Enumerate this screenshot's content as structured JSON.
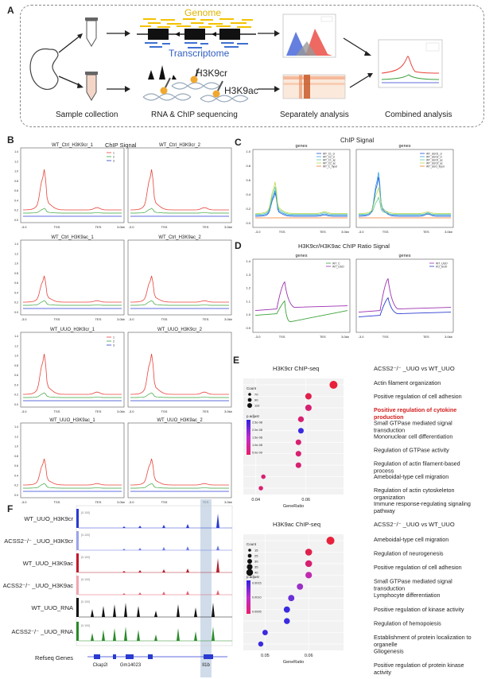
{
  "panels": {
    "A": "A",
    "B": "B",
    "C": "C",
    "D": "D",
    "E": "E",
    "F": "F"
  },
  "panelA": {
    "genome": "Genome",
    "transcriptome": "Transcriptome",
    "h3k9cr": "H3K9cr",
    "h3k9ac": "H3K9ac",
    "steps": [
      "Sample collection",
      "RNA  & ChIP sequencing",
      "Separately analysis",
      "Combined analysis"
    ]
  },
  "panelB": {
    "heading": "ChIP Signal",
    "plots": [
      {
        "title": "WT_Ctrl_H3K9cr_1"
      },
      {
        "title": "WT_Ctrl_H3K9cr_2"
      },
      {
        "title": "WT_Ctrl_H3K9ac_1"
      },
      {
        "title": "WT_Ctrl_H3K9ac_2"
      },
      {
        "title": "WT_UUO_H3K9cr_1"
      },
      {
        "title": "WT_UUO_H3K9cr_2"
      },
      {
        "title": "WT_UUO_H3K9ac_1"
      },
      {
        "title": "WT_UUO_H3K9ac_2"
      }
    ],
    "xticks": [
      "-3.0",
      "TSS",
      "TES",
      "3.0kb"
    ],
    "legend": [
      "1",
      "2",
      "3"
    ]
  },
  "panelC": {
    "heading": "ChIP Signal",
    "subtitle": "genes",
    "left_legend": [
      "WT_C1_cr",
      "WT_C2_cr",
      "WT_C1_ac",
      "WT_C2_ac",
      "WT_C_Input"
    ],
    "right_legend": [
      "WT_UUO1_cr",
      "WT_UUO2_cr",
      "WT_UUO1_ac",
      "WT_UUO2_ac",
      "WT_UUO_Input"
    ],
    "yticks": [
      "1.0",
      "0.8",
      "0.6",
      "0.4",
      "0.2",
      "0.0"
    ],
    "xticks": [
      "-3.0",
      "TSS",
      "TES",
      "3.0kb"
    ]
  },
  "panelD": {
    "heading": "H3K9cr/H3K9ac ChIP Ratio Signal",
    "subtitle": "genes",
    "left_legend": [
      "WT_C",
      "WT_UUO"
    ],
    "right_legend": [
      "WT_UUO",
      "KO_UUO"
    ],
    "yticks": [
      "1.4",
      "1.3",
      "1.2",
      "1.1",
      "1.0",
      "0.9"
    ],
    "xticks": [
      "-3.0",
      "TSS",
      "TES",
      "3.0kb"
    ]
  },
  "panelE": {
    "top": {
      "title": "H3K9cr ChIP-seq",
      "comparison": "ACSS2⁻/⁻ _UUO vs WT_UUO",
      "count_label": "Count",
      "count_values": [
        "70",
        "90",
        "110"
      ],
      "padj_label": "p.adjust",
      "padj_values": [
        "2.5e-08",
        "2.0e-08",
        "1.5e-08",
        "1.0e-08",
        "5.0e-09"
      ],
      "xlabel": "GeneRatio",
      "xticks": [
        "0.04",
        "0.06"
      ],
      "terms": [
        "Actin filament organization",
        "Positive regulation of cell adhesion",
        "Positive regulation of cytokine production",
        "Small GTPase mediated signal transduction",
        "Mononuclear cell differentiation",
        "Regulation of GTPase activity",
        "Regulation of actin filament-based process",
        "Ameboidal-type cell migration",
        "Regulation of actin cytoskeleton organization",
        "Immune response-regulating signaling pathway"
      ],
      "highlight_index": 2,
      "gene_ratio": [
        0.071,
        0.061,
        0.061,
        0.058,
        0.058,
        0.057,
        0.057,
        0.057,
        0.043,
        0.042
      ],
      "count": [
        115,
        95,
        95,
        88,
        85,
        85,
        85,
        85,
        70,
        70
      ]
    },
    "bottom": {
      "title": "H3K9ac  ChIP-seq",
      "comparison": "ACSS2⁻/⁻ _UUO vs WT_UUO",
      "count_label": "Count",
      "count_values": [
        "15",
        "25",
        "30",
        "35",
        "40"
      ],
      "padj_label": "p.adjust",
      "padj_values": [
        "0.0015",
        "0.0010",
        "0.0005"
      ],
      "xlabel": "GeneRatio",
      "xticks": [
        "0.05",
        "0.06"
      ],
      "terms": [
        "Ameboidal-type cell migration",
        "Regulation of neurogenesis",
        "Positive regulation of cell adhesion",
        "Small GTPase mediated signal transduction",
        "Lymphocyte differentiation",
        "Positive regulation of kinase activity",
        "Regulation of hemopoiesis",
        "Establishment of protein localization to organelle",
        "Gliogenesis",
        "Positive regulation of protein kinase activity"
      ],
      "gene_ratio": [
        0.065,
        0.06,
        0.06,
        0.06,
        0.058,
        0.056,
        0.055,
        0.055,
        0.05,
        0.049
      ],
      "count": [
        40,
        32,
        32,
        30,
        28,
        28,
        28,
        26,
        22,
        20
      ]
    }
  },
  "panelF": {
    "tracks": [
      "WT_UUO_H3K9cr",
      "ACSS2⁻/⁻ _UUO_H3K9cr",
      "WT_UUO_H3K9ac",
      "ACSS2⁻/⁻ _UUO_H3K9ac",
      "WT_UUO_RNA",
      "ACSS2⁻/⁻ _UUO_RNA"
    ],
    "refseq": "Refseq Genes",
    "genes": [
      "Ckap2l",
      "Gm14023",
      "Il1b"
    ]
  },
  "colors": {
    "red": "#e8433a",
    "green": "#3aa13a",
    "blue": "#2a3bd0",
    "purple": "#9b2fb0"
  }
}
